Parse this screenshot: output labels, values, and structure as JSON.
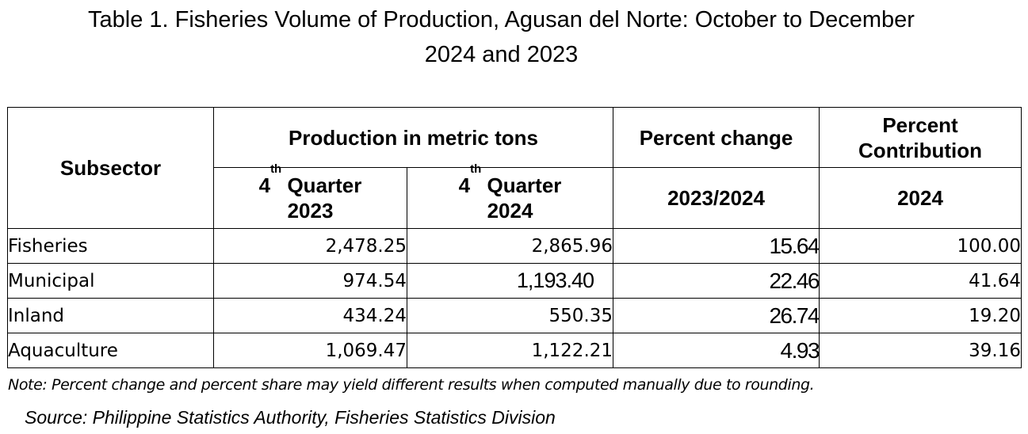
{
  "title": {
    "line1": "Table 1.  Fisheries Volume of Production, Agusan del Norte: October to December",
    "line2": "2024 and 2023"
  },
  "table": {
    "headers": {
      "subsector": "Subsector",
      "production": "Production in metric tons",
      "percent_change": "Percent change",
      "percent_contribution_line1": "Percent",
      "percent_contribution_line2": "Contribution",
      "q2023_prefix": "4",
      "q2023_sup": "th",
      "q2023_suffix": " Quarter",
      "q2023_year": "2023",
      "q2024_prefix": "4",
      "q2024_sup": "th",
      "q2024_suffix": " Quarter",
      "q2024_year": "2024",
      "change_years": "2023/2024",
      "contribution_year": "2024"
    },
    "rows": [
      {
        "subsector": "Fisheries",
        "q2023": "2,478.25",
        "q2024": "2,865.96",
        "change": "15.64",
        "contribution": "100.00"
      },
      {
        "subsector": "Municipal",
        "q2023": "974.54",
        "q2024": "1,193.40",
        "change": "22.46",
        "contribution": "41.64"
      },
      {
        "subsector": "Inland",
        "q2023": "434.24",
        "q2024": "550.35",
        "change": "26.74",
        "contribution": "19.20"
      },
      {
        "subsector": "Aquaculture",
        "q2023": "1,069.47",
        "q2024": "1,122.21",
        "change": "4.93",
        "contribution": "39.16"
      }
    ]
  },
  "note": "Note: Percent change and percent share may yield different results when computed manually due to rounding.",
  "source": "Source: Philippine Statistics Authority, Fisheries Statistics Division"
}
